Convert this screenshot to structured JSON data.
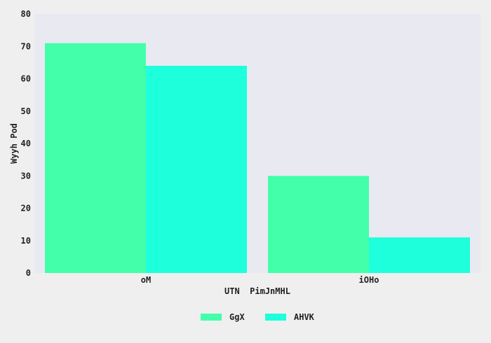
{
  "chart_data": {
    "type": "bar",
    "title": "",
    "xlabel": "UTN  PimJnMHL",
    "ylabel": "Wyyh Pod",
    "categories": [
      "oM",
      "iOHo"
    ],
    "series": [
      {
        "name": "GgX",
        "values": [
          71,
          30
        ],
        "color": "#43ffaa"
      },
      {
        "name": "AHVK",
        "values": [
          64,
          11
        ],
        "color": "#1effdb"
      }
    ],
    "ylim": [
      0,
      80
    ],
    "yticks": [
      0,
      10,
      20,
      30,
      40,
      50,
      60,
      70,
      80
    ],
    "grid": false,
    "legend": "bottom-center"
  },
  "colors": {
    "page_background": "#efefef",
    "plot_background": "#e9e9f2"
  }
}
